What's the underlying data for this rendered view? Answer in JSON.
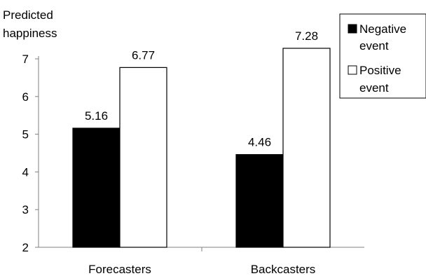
{
  "chart_data": {
    "type": "bar",
    "ylabel_lines": [
      "Predicted",
      "happiness"
    ],
    "xlabel": "",
    "categories": [
      "Forecasters",
      "Backcasters"
    ],
    "series": [
      {
        "name": "Negative event",
        "name_lines": [
          "Negative",
          "event"
        ],
        "color": "#000000",
        "values": [
          5.16,
          4.46
        ]
      },
      {
        "name": "Positive event",
        "name_lines": [
          "Positive",
          "event"
        ],
        "color": "#ffffff",
        "values": [
          6.77,
          7.28
        ]
      }
    ],
    "data_labels": [
      [
        "5.16",
        "4.46"
      ],
      [
        "6.77",
        "7.28"
      ]
    ],
    "ylim": [
      2,
      7
    ],
    "yticks": [
      2,
      3,
      4,
      5,
      6,
      7
    ],
    "ytick_labels": [
      "2",
      "3",
      "4",
      "5",
      "6",
      "7"
    ],
    "grid": false,
    "legend_position": "top-right"
  }
}
